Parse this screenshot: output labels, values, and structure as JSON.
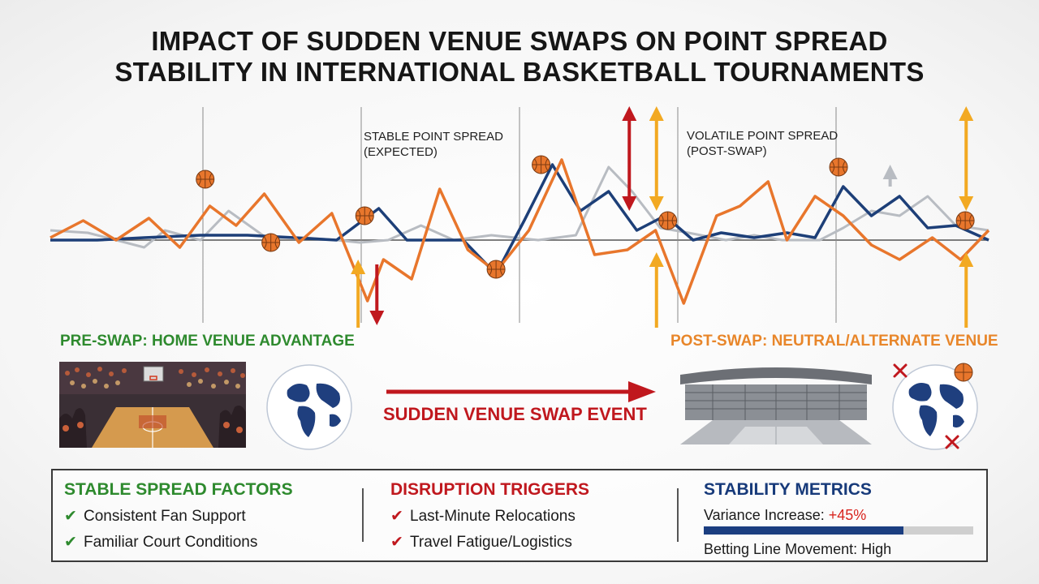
{
  "title_lines": [
    "IMPACT OF SUDDEN VENUE SWAPS ON POINT SPREAD",
    "STABILITY IN INTERNATIONAL BASKETBALL TOURNAMENTS"
  ],
  "annotations": {
    "stable_line1": "STABLE POINT SPREAD",
    "stable_line2": "(EXPECTED)",
    "volatile_line1": "VOLATILE POINT SPREAD",
    "volatile_line2": "(POST-SWAP)"
  },
  "pre_swap_label": "PRE-SWAP: HOME VENUE ADVANTAGE",
  "post_swap_label": "POST-SWAP: NEUTRAL/ALTERNATE VENUE",
  "swap_event_label": "SUDDEN VENUE SWAP EVENT",
  "factors": {
    "stable": {
      "heading": "STABLE SPREAD FACTORS",
      "items": [
        "Consistent Fan Support",
        "Familiar Court Conditions"
      ]
    },
    "disruption": {
      "heading": "DISRUPTION TRIGGERS",
      "items": [
        "Last-Minute Relocations",
        "Travel Fatigue/Logistics"
      ]
    },
    "metrics": {
      "heading": "STABILITY METRICS",
      "variance_label": "Variance Increase: ",
      "variance_value": "+45%",
      "variance_fraction": 0.74,
      "movement_label": "Betting Line Movement: High"
    }
  },
  "colors": {
    "orange": "#e8762c",
    "navy": "#1d3f78",
    "gray": "#b8bcc2",
    "green": "#2e8a2e",
    "red": "#c0181e",
    "gold": "#f2a922"
  },
  "chart_data": {
    "type": "line",
    "xlim": [
      0,
      100
    ],
    "ylim": [
      -40,
      60
    ],
    "series": [
      {
        "key": "orange",
        "x": [
          0,
          3.5,
          7,
          10.5,
          13.8,
          17,
          19.8,
          22.8,
          26.5,
          30,
          33.8,
          35.5,
          38.5,
          41.5,
          44.5,
          47.5,
          51,
          54.5,
          58,
          61.5,
          64.5,
          67.5,
          71,
          73.5,
          76.5,
          78.5,
          81.5,
          84.5,
          87.5,
          90.5,
          94,
          97,
          100
        ],
        "y": [
          1,
          8,
          0,
          9,
          -3,
          14,
          6,
          19,
          -1,
          11,
          -25,
          -8,
          -16,
          21,
          -4,
          -13,
          4,
          33,
          -6,
          -4,
          4,
          -26,
          10,
          14,
          24,
          0,
          18,
          10,
          -2,
          -8,
          1,
          -8,
          4
        ]
      },
      {
        "key": "navy",
        "x": [
          0,
          5,
          10,
          16,
          21,
          26,
          30.5,
          35,
          38,
          41,
          44,
          47.5,
          50.5,
          53.5,
          56.5,
          59.5,
          62.5,
          65.5,
          68.5,
          71.5,
          75,
          78.5,
          81.5,
          84.5,
          87.5,
          90.5,
          93.5,
          96.5,
          100
        ],
        "y": [
          0,
          0,
          1,
          2,
          2,
          1,
          0,
          13,
          0,
          0,
          0,
          -14,
          8,
          31,
          12,
          20,
          4,
          10,
          0,
          3,
          1,
          3,
          1,
          22,
          10,
          18,
          5,
          6,
          0
        ]
      },
      {
        "key": "gray",
        "x": [
          0,
          4,
          10,
          12.2,
          16,
          19,
          23,
          27,
          30.5,
          33,
          36,
          39.5,
          43,
          47,
          52,
          56,
          59.5,
          62,
          65,
          68,
          72,
          75,
          78,
          82,
          84.5,
          87.5,
          90.5,
          93.5,
          96.5,
          100
        ],
        "y": [
          4,
          3,
          -3,
          4,
          0,
          12,
          1,
          1,
          0,
          -1,
          0,
          6,
          0,
          2,
          0,
          2,
          30,
          20,
          5,
          3,
          0,
          2,
          0,
          0,
          5,
          12,
          10,
          18,
          6,
          4
        ]
      }
    ],
    "balls": [
      {
        "x": 16.5,
        "y": 25
      },
      {
        "x": 23.5,
        "y": -1
      },
      {
        "x": 33.5,
        "y": 10
      },
      {
        "x": 47.5,
        "y": -12
      },
      {
        "x": 52.3,
        "y": 31
      },
      {
        "x": 65.8,
        "y": 8
      },
      {
        "x": 84,
        "y": 30
      },
      {
        "x": 97.5,
        "y": 8
      }
    ],
    "arrows": [
      {
        "x": 32.8,
        "y_from": -36,
        "y_to": -11,
        "color": "gold",
        "dir": "up"
      },
      {
        "x": 34.8,
        "y_from": -10,
        "y_to": -32,
        "color": "red",
        "dir": "down"
      },
      {
        "x": 61.7,
        "y_from": 15,
        "y_to": 52,
        "color": "red",
        "dir": "both"
      },
      {
        "x": 64.6,
        "y_from": 15,
        "y_to": 52,
        "color": "gold",
        "dir": "both"
      },
      {
        "x": 64.6,
        "y_from": -36,
        "y_to": -8,
        "color": "gold",
        "dir": "up"
      },
      {
        "x": 97.6,
        "y_from": 15,
        "y_to": 52,
        "color": "gold",
        "dir": "both"
      },
      {
        "x": 97.6,
        "y_from": -36,
        "y_to": -8,
        "color": "gold",
        "dir": "up"
      },
      {
        "x": 89.5,
        "y_from": 22,
        "y_to": 28,
        "color": "gray",
        "dir": "down"
      }
    ]
  }
}
